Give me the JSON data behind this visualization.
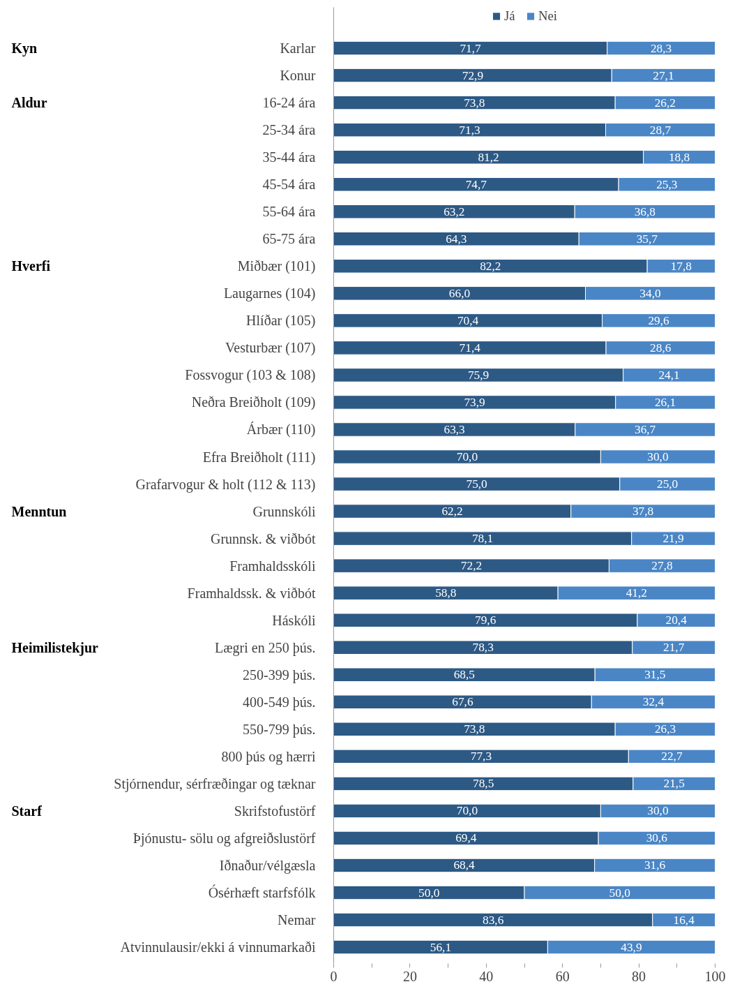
{
  "chart_data": {
    "type": "bar",
    "orientation": "horizontal",
    "stacked": true,
    "legend": "top",
    "grid": false,
    "categories": [
      "Karlar",
      "Konur",
      "16-24 ára",
      "25-34 ára",
      "35-44 ára",
      "45-54 ára",
      "55-64 ára",
      "65-75 ára",
      "Miðbær (101)",
      "Laugarnes (104)",
      "Hlíðar (105)",
      "Vesturbær (107)",
      "Fossvogur (103 & 108)",
      "Neðra Breiðholt (109)",
      "Árbær (110)",
      "Efra Breiðholt (111)",
      "Grafarvogur & holt (112 & 113)",
      "Grunnskóli",
      "Grunnsk. & viðbót",
      "Framhaldsskóli",
      "Framhaldssk. & viðbót",
      "Háskóli",
      "Lægri en 250 þús.",
      "250-399 þús.",
      "400-549 þús.",
      "550-799 þús.",
      "800 þús og hærri",
      "Stjórnendur, sérfræðingar og tæknar",
      "Skrifstofustörf",
      "Þjónustu- sölu og afgreiðslustörf",
      "Iðnaður/vélgæsla",
      "Ósérhæft starfsfólk",
      "Nemar",
      "Atvinnulausir/ekki á vinnumarkaði"
    ],
    "series": [
      {
        "name": "Já",
        "color": "#2d5985",
        "values": [
          71.7,
          72.9,
          73.8,
          71.3,
          81.2,
          74.7,
          63.2,
          64.3,
          82.2,
          66.0,
          70.4,
          71.4,
          75.9,
          73.9,
          63.3,
          70.0,
          75.0,
          62.2,
          78.1,
          72.2,
          58.8,
          79.6,
          78.3,
          68.5,
          67.6,
          73.8,
          77.3,
          78.5,
          70.0,
          69.4,
          68.4,
          50.0,
          83.6,
          56.1
        ],
        "value_labels": [
          "71,7",
          "72,9",
          "73,8",
          "71,3",
          "81,2",
          "74,7",
          "63,2",
          "64,3",
          "82,2",
          "66,0",
          "70,4",
          "71,4",
          "75,9",
          "73,9",
          "63,3",
          "70,0",
          "75,0",
          "62,2",
          "78,1",
          "72,2",
          "58,8",
          "79,6",
          "78,3",
          "68,5",
          "67,6",
          "73,8",
          "77,3",
          "78,5",
          "70,0",
          "69,4",
          "68,4",
          "50,0",
          "83,6",
          "56,1"
        ]
      },
      {
        "name": "Nei",
        "color": "#4a86c6",
        "values": [
          28.3,
          27.1,
          26.2,
          28.7,
          18.8,
          25.3,
          36.8,
          35.7,
          17.8,
          34.0,
          29.6,
          28.6,
          24.1,
          26.1,
          36.7,
          30.0,
          25.0,
          37.8,
          21.9,
          27.8,
          41.2,
          20.4,
          21.7,
          31.5,
          32.4,
          26.3,
          22.7,
          21.5,
          30.0,
          30.6,
          31.6,
          50.0,
          16.4,
          43.9
        ],
        "value_labels": [
          "28,3",
          "27,1",
          "26,2",
          "28,7",
          "18,8",
          "25,3",
          "36,8",
          "35,7",
          "17,8",
          "34,0",
          "29,6",
          "28,6",
          "24,1",
          "26,1",
          "36,7",
          "30,0",
          "25,0",
          "37,8",
          "21,9",
          "27,8",
          "41,2",
          "20,4",
          "21,7",
          "31,5",
          "32,4",
          "26,3",
          "22,7",
          "21,5",
          "30,0",
          "30,6",
          "31,6",
          "50,0",
          "16,4",
          "43,9"
        ]
      }
    ],
    "xlim": [
      0,
      100
    ],
    "xticks": [
      0,
      {
        "value": 10,
        "label": null
      },
      20,
      {
        "value": 30,
        "label": null
      },
      40,
      {
        "value": 50,
        "label": null
      },
      60,
      {
        "value": 70,
        "label": null
      },
      80,
      {
        "value": 90,
        "label": null
      },
      100
    ],
    "annotations": [
      "Kyn",
      "Aldur",
      "Hverfi",
      "Menntun",
      "Heimilistekjur",
      "Starf"
    ]
  }
}
